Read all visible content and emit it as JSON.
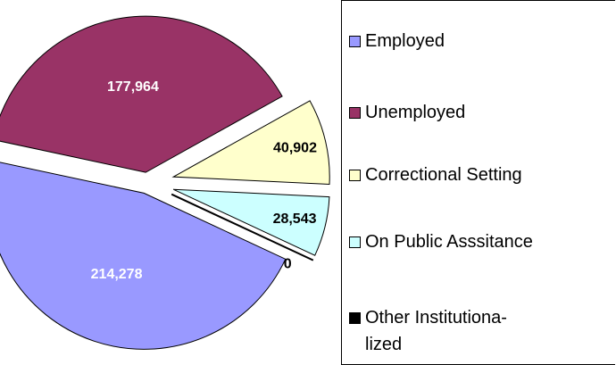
{
  "chart_data": {
    "type": "pie",
    "categories": [
      "Employed",
      "Unemployed",
      "Correctional Setting",
      "On Public Asssitance",
      "Other Institutiona-lized"
    ],
    "values": [
      214278,
      177964,
      40902,
      28543,
      0
    ],
    "value_labels": [
      "214,278",
      "177,964",
      "40,902",
      "28,543",
      "0"
    ],
    "colors": [
      "#9999ff",
      "#993366",
      "#ffffcc",
      "#ccffff",
      "#000000"
    ],
    "label_colors": [
      "#ffffff",
      "#ffffff",
      "#000000",
      "#000000",
      "#000000"
    ],
    "exploded": true
  }
}
